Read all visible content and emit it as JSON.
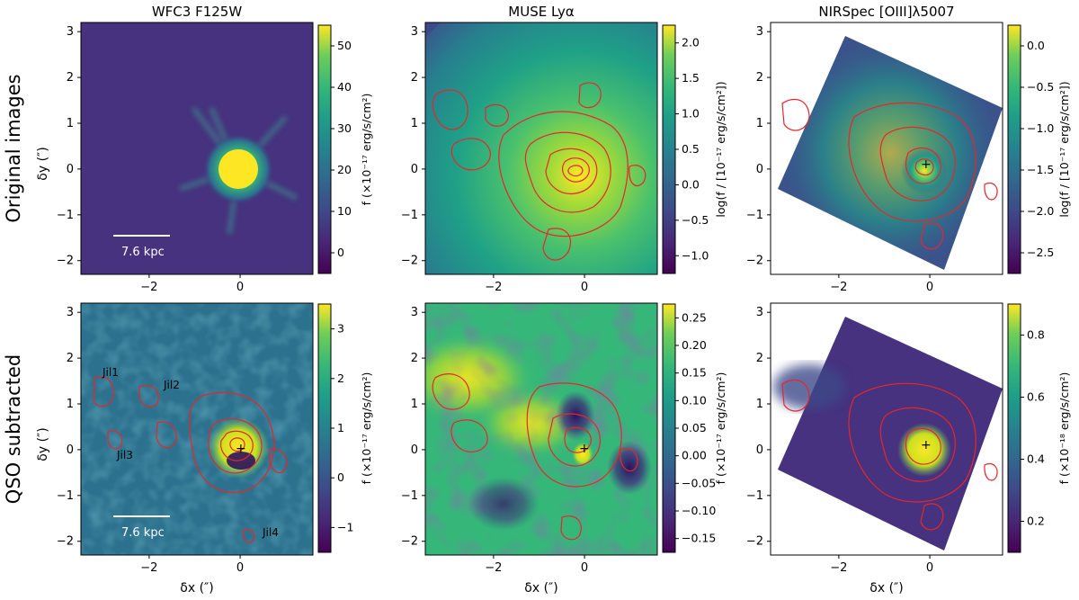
{
  "figure": {
    "column_titles": [
      "WFC3 F125W",
      "MUSE Lyα",
      "NIRSpec [OIII]λ5007"
    ],
    "row_labels": [
      "Original images",
      "QSO subtracted"
    ],
    "x_axis_label": "δx (″)",
    "y_axis_label": "δy (″)",
    "x_ticks": [
      "−2",
      "0"
    ],
    "y_ticks": [
      "3",
      "2",
      "1",
      "0",
      "−1",
      "−2"
    ],
    "scale_bar_label": "7.6 kpc",
    "source_labels": [
      "Jil1",
      "Jil2",
      "Jil3",
      "Jil4"
    ],
    "panels": [
      {
        "colorbar_label": "f (×10⁻¹⁷ erg/s/cm²)",
        "colorbar_ticks": [
          "50",
          "40",
          "30",
          "20",
          "10",
          "0"
        ]
      },
      {
        "colorbar_label": "log(f / [10⁻¹⁷ erg/s/cm²])",
        "colorbar_ticks": [
          "2.0",
          "1.5",
          "1.0",
          "0.5",
          "0.0",
          "−0.5",
          "−1.0"
        ]
      },
      {
        "colorbar_label": "log(f / [10⁻¹⁷ erg/s/cm²])",
        "colorbar_ticks": [
          "0.0",
          "−0.5",
          "−1.0",
          "−1.5",
          "−2.0",
          "−2.5"
        ]
      },
      {
        "colorbar_label": "f (×10⁻¹⁷ erg/s/cm²)",
        "colorbar_ticks": [
          "3",
          "2",
          "1",
          "0",
          "−1"
        ]
      },
      {
        "colorbar_label": "f (×10⁻¹⁷ erg/s/cm²)",
        "colorbar_ticks": [
          "0.25",
          "0.20",
          "0.15",
          "0.10",
          "0.05",
          "0.00",
          "−0.05",
          "−0.10",
          "−0.15"
        ]
      },
      {
        "colorbar_label": "f (×10⁻¹⁸ erg/s/cm²)",
        "colorbar_ticks": [
          "0.8",
          "0.6",
          "0.4",
          "0.2"
        ]
      }
    ],
    "colors": {
      "contour": "#e8262a",
      "cmap_low": "#440154",
      "cmap_mid": "#21918c",
      "cmap_high": "#fde725"
    }
  }
}
